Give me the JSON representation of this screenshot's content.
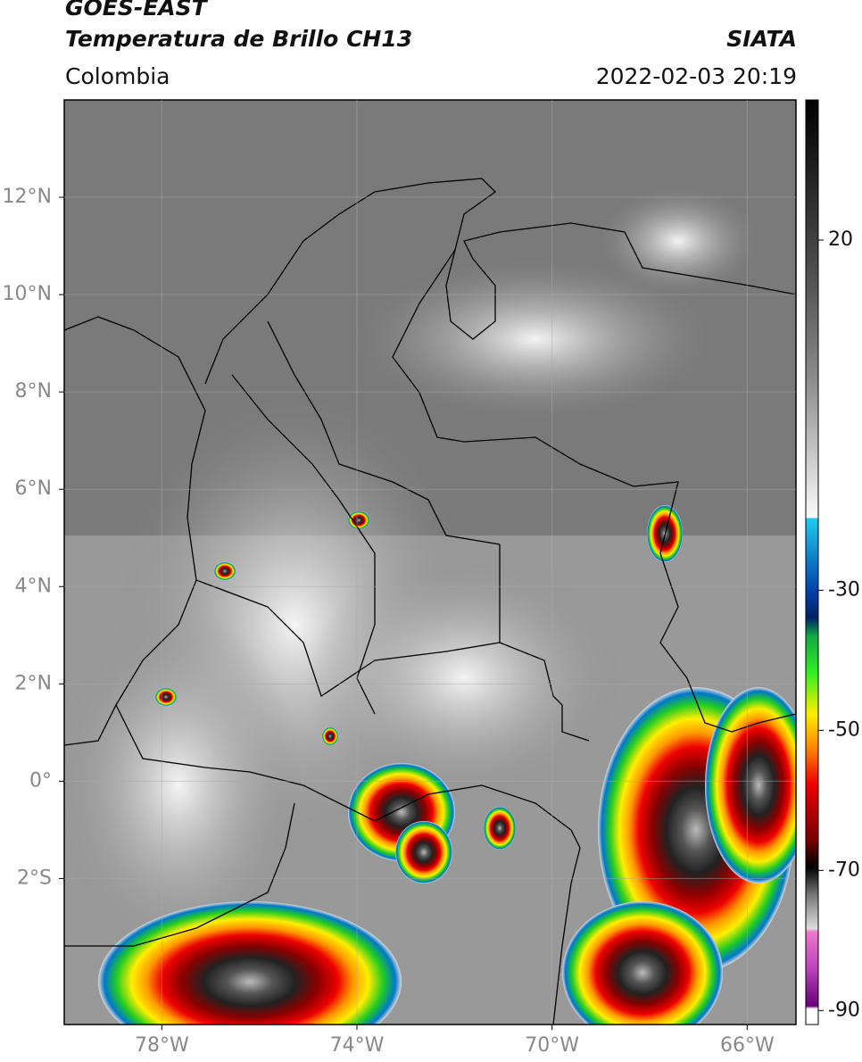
{
  "header": {
    "satellite": "GOES-EAST",
    "product": "Temperatura de Brillo CH13",
    "source": "SIATA",
    "region": "Colombia",
    "datetime": "2022-02-03 20:19"
  },
  "map": {
    "xlim": [
      -80,
      -65
    ],
    "ylim": [
      -5,
      14
    ],
    "xticks": [
      {
        "value": -78,
        "label": "78°W"
      },
      {
        "value": -74,
        "label": "74°W"
      },
      {
        "value": -70,
        "label": "70°W"
      },
      {
        "value": -66,
        "label": "66°W"
      }
    ],
    "yticks": [
      {
        "value": 12,
        "label": "12°N"
      },
      {
        "value": 10,
        "label": "10°N"
      },
      {
        "value": 8,
        "label": "8°N"
      },
      {
        "value": 6,
        "label": "6°N"
      },
      {
        "value": 4,
        "label": "4°N"
      },
      {
        "value": 2,
        "label": "2°N"
      },
      {
        "value": 0,
        "label": "0°"
      },
      {
        "value": -2,
        "label": "2°S"
      }
    ],
    "grid": true
  },
  "colorbar": {
    "lim": [
      -92,
      40
    ],
    "ticks": [
      20,
      -30,
      -50,
      -70,
      -90
    ]
  }
}
